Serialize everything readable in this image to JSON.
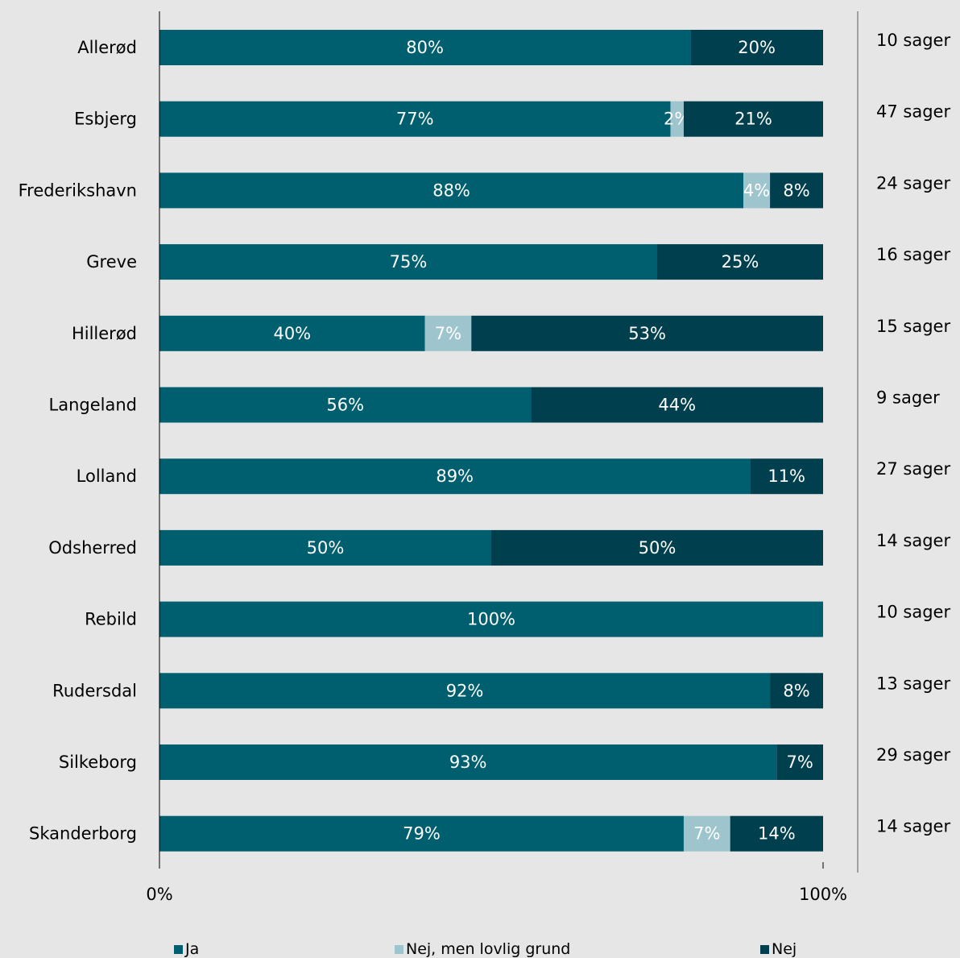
{
  "chart_data": {
    "type": "bar",
    "orientation": "horizontal",
    "stacked": true,
    "categories": [
      "Allerød",
      "Esbjerg",
      "Frederikshavn",
      "Greve",
      "Hillerød",
      "Langeland",
      "Lolland",
      "Odsherred",
      "Rebild",
      "Rudersdal",
      "Silkeborg",
      "Skanderborg"
    ],
    "series": [
      {
        "name": "Ja",
        "color": "#005f6e",
        "values": [
          80,
          77,
          88,
          75,
          40,
          56,
          89,
          50,
          100,
          92,
          93,
          79
        ]
      },
      {
        "name": "Nej, men lovlig grund",
        "color": "#9ec5cd",
        "values": [
          0,
          2,
          4,
          0,
          7,
          0,
          0,
          0,
          0,
          0,
          0,
          7
        ]
      },
      {
        "name": "Nej",
        "color": "#003f4d",
        "values": [
          20,
          21,
          8,
          25,
          53,
          44,
          11,
          50,
          0,
          8,
          7,
          14
        ]
      }
    ],
    "data_labels": [
      [
        "80%",
        "",
        "20%"
      ],
      [
        "77%",
        "2%",
        "21%"
      ],
      [
        "88%",
        "4%",
        "8%"
      ],
      [
        "75%",
        "",
        "25%"
      ],
      [
        "40%",
        "7%",
        "53%"
      ],
      [
        "56%",
        "",
        "44%"
      ],
      [
        "89%",
        "",
        "11%"
      ],
      [
        "50%",
        "",
        "50%"
      ],
      [
        "100%",
        "",
        ""
      ],
      [
        "92%",
        "",
        "8%"
      ],
      [
        "93%",
        "",
        "7%"
      ],
      [
        "79%",
        "7%",
        "14%"
      ]
    ],
    "case_counts": [
      "10 sager",
      "47 sager",
      "24 sager",
      "16 sager",
      "15 sager",
      "9 sager",
      "27 sager",
      "14 sager",
      "10 sager",
      "13 sager",
      "29 sager",
      "14 sager"
    ],
    "xlim": [
      0,
      100
    ],
    "x_ticks": [
      "0%",
      "100%"
    ],
    "legend_position": "bottom",
    "grid": false,
    "title": "",
    "xlabel": "",
    "ylabel": ""
  }
}
